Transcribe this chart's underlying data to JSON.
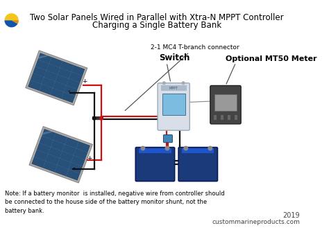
{
  "title_line1": "Two Solar Panels Wired in Parallel with Xtra-N MPPT Controller",
  "title_line2": "Charging a Single Battery Bank",
  "title_fontsize": 8.5,
  "note_text": "Note: If a battery monitor  is installed, negative wire from controller should\nbe connected to the house side of the battery monitor shunt, not the\nbattery bank.",
  "note_fontsize": 6.0,
  "year_text": "2019",
  "website_text": "custommarineproducts.com",
  "label_mc4": "2-1 MC4 T-branch connector",
  "label_switch": "Switch",
  "label_mt50": "Optional MT50 Meter",
  "bg_color": "#ffffff",
  "wire_red": "#cc1111",
  "wire_black": "#111111",
  "panel_dark": "#1e3a58",
  "panel_frame": "#aaaaaa",
  "panel_cell": "#2a5580",
  "panel_line": "#3a7aaa",
  "battery_body": "#1a3a7a",
  "battery_top": "#1e55cc",
  "battery_side": "#112266",
  "junction_color": "#333333",
  "ctrl_body": "#d8dfe8",
  "ctrl_screen": "#7bbce0",
  "ctrl_brand": "#445566",
  "mt50_body": "#444444",
  "mt50_screen": "#999999",
  "mt50_border": "#222222",
  "fuse_color": "#4488bb",
  "logo_yellow": "#f5c518",
  "logo_blue": "#1155aa",
  "logo_orange": "#e08820"
}
